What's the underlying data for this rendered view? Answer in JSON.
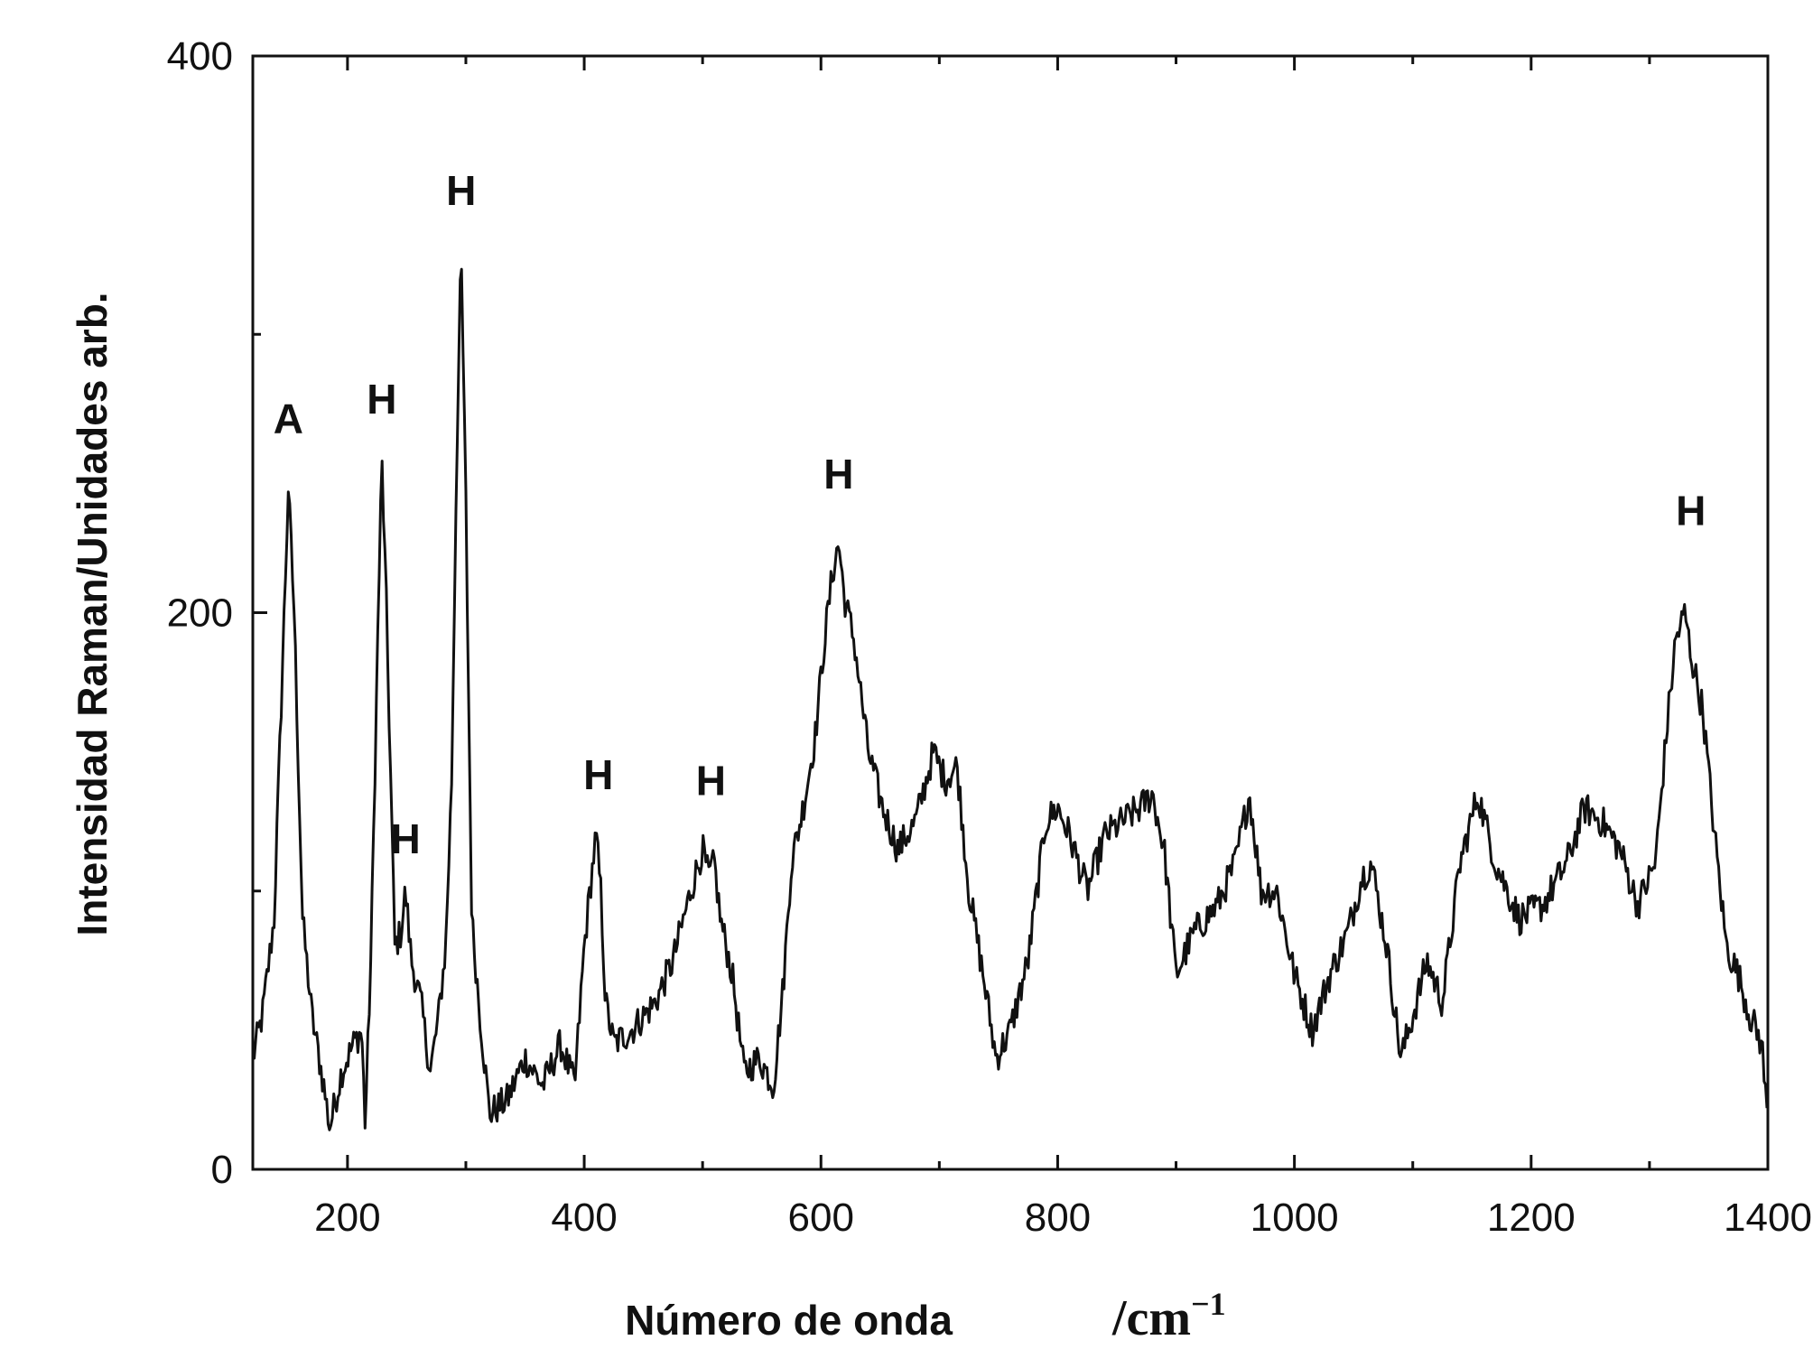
{
  "chart_data": {
    "type": "line",
    "title": "",
    "xlabel": "Número de onda",
    "xlabel_unit": "/cm",
    "xlabel_unit_exp": "−1",
    "ylabel": "Intensidad Raman/Unidades arb.",
    "xlim": [
      120,
      1400
    ],
    "ylim": [
      0,
      400
    ],
    "xticks": [
      200,
      400,
      600,
      800,
      1000,
      1200,
      1400
    ],
    "xtick_labels": [
      "200",
      "400",
      "600",
      "800",
      "1000",
      "1200",
      "1400"
    ],
    "yticks": [
      0,
      200,
      400
    ],
    "ytick_labels": [
      "0",
      "200",
      "400"
    ],
    "grid": false,
    "legend": "none",
    "line_color": "#111111",
    "series": [
      {
        "x": [
          120,
          128,
          138,
          145,
          150,
          155,
          162,
          170,
          180,
          185,
          195,
          205,
          212,
          215,
          220,
          226,
          229,
          233,
          240,
          245,
          249,
          254,
          262,
          270,
          277,
          283,
          288,
          292,
          296,
          300,
          305,
          312,
          320,
          335,
          350,
          365,
          380,
          392,
          400,
          406,
          410,
          414,
          418,
          425,
          440,
          460,
          475,
          490,
          500,
          505,
          510,
          515,
          525,
          535,
          548,
          560,
          568,
          575,
          585,
          595,
          603,
          610,
          615,
          620,
          628,
          640,
          652,
          665,
          680,
          695,
          705,
          715,
          725,
          735,
          748,
          760,
          775,
          790,
          800,
          810,
          825,
          840,
          855,
          870,
          880,
          890,
          900,
          915,
          935,
          950,
          962,
          972,
          985,
          1000,
          1015,
          1030,
          1045,
          1057,
          1065,
          1078,
          1090,
          1100,
          1112,
          1125,
          1140,
          1155,
          1170,
          1190,
          1210,
          1230,
          1245,
          1260,
          1275,
          1290,
          1305,
          1315,
          1322,
          1330,
          1335,
          1345,
          1355,
          1365,
          1375,
          1385,
          1395,
          1400
        ],
        "y": [
          40,
          55,
          90,
          180,
          245,
          200,
          90,
          55,
          30,
          15,
          35,
          45,
          50,
          15,
          80,
          200,
          255,
          200,
          80,
          85,
          100,
          75,
          60,
          35,
          55,
          80,
          140,
          250,
          330,
          240,
          90,
          55,
          20,
          25,
          40,
          30,
          45,
          30,
          80,
          105,
          120,
          100,
          60,
          45,
          50,
          60,
          75,
          100,
          115,
          105,
          110,
          90,
          70,
          35,
          40,
          30,
          65,
          110,
          130,
          155,
          190,
          215,
          225,
          205,
          190,
          150,
          130,
          115,
          125,
          150,
          140,
          145,
          100,
          75,
          40,
          50,
          75,
          125,
          130,
          120,
          100,
          120,
          125,
          130,
          135,
          115,
          70,
          85,
          95,
          110,
          135,
          100,
          100,
          70,
          50,
          70,
          85,
          105,
          110,
          80,
          40,
          55,
          75,
          60,
          110,
          135,
          110,
          90,
          95,
          110,
          130,
          125,
          115,
          95,
          110,
          160,
          190,
          200,
          185,
          165,
          120,
          80,
          70,
          55,
          45,
          15
        ],
        "noise_amplitude": 6
      }
    ],
    "annotations": [
      {
        "text": "A",
        "x": 150,
        "y": 260
      },
      {
        "text": "H",
        "x": 229,
        "y": 267
      },
      {
        "text": "H",
        "x": 249,
        "y": 109
      },
      {
        "text": "H",
        "x": 296,
        "y": 342
      },
      {
        "text": "H",
        "x": 412,
        "y": 132
      },
      {
        "text": "H",
        "x": 507,
        "y": 130
      },
      {
        "text": "H",
        "x": 615,
        "y": 240
      },
      {
        "text": "H",
        "x": 1335,
        "y": 227
      }
    ]
  }
}
